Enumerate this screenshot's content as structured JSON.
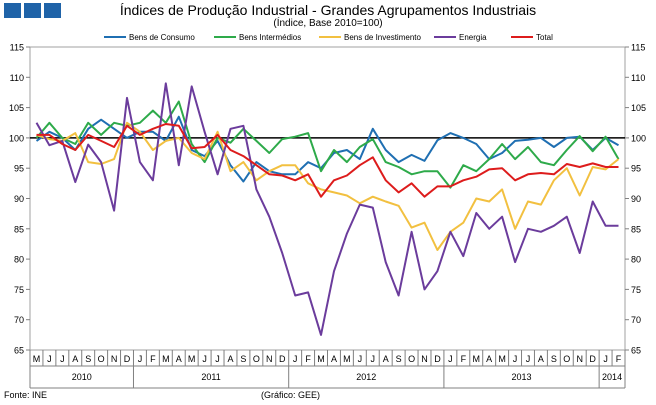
{
  "chart_data": {
    "type": "line",
    "title": "Índices de Produção Industrial - Grandes Agrupamentos Industriais",
    "subtitle": "(Índice, Base 2010=100)",
    "ylim": [
      65,
      115
    ],
    "yticks": [
      65,
      70,
      75,
      80,
      85,
      90,
      95,
      100,
      105,
      110,
      115
    ],
    "x": [
      "M",
      "J",
      "J",
      "A",
      "S",
      "O",
      "N",
      "D",
      "J",
      "F",
      "M",
      "A",
      "M",
      "J",
      "J",
      "A",
      "S",
      "O",
      "N",
      "D",
      "J",
      "F",
      "M",
      "A",
      "M",
      "J",
      "J",
      "A",
      "S",
      "O",
      "N",
      "D",
      "J",
      "F",
      "M",
      "A",
      "M",
      "J",
      "J",
      "A",
      "S",
      "O",
      "N",
      "D",
      "J",
      "F"
    ],
    "year_labels": [
      {
        "label": "2010",
        "start": 0,
        "end": 7
      },
      {
        "label": "2011",
        "start": 8,
        "end": 19
      },
      {
        "label": "2012",
        "start": 20,
        "end": 31
      },
      {
        "label": "2013",
        "start": 32,
        "end": 43
      },
      {
        "label": "2014",
        "start": 44,
        "end": 45
      }
    ],
    "reference_line": 100,
    "legend_position": "top",
    "series": [
      {
        "name": "Bens de Consumo",
        "color": "#1f6fb2",
        "values": [
          99.5,
          101,
          100,
          98,
          101.5,
          103,
          101.5,
          100,
          101,
          101,
          99.5,
          103.5,
          98,
          97,
          99.5,
          95.5,
          92.8,
          96,
          94.5,
          94,
          94,
          96,
          95,
          97.5,
          98,
          96.5,
          101.5,
          98,
          96,
          97.2,
          96.2,
          99.6,
          100.8,
          100,
          99,
          96.5,
          97.5,
          99.5,
          99.7,
          100,
          98.5,
          100,
          100.2,
          98,
          100,
          98.8
        ]
      },
      {
        "name": "Bens Intermédios",
        "color": "#2eaa4a",
        "values": [
          100,
          102.5,
          100,
          99,
          102.5,
          100.5,
          102.5,
          102,
          102.5,
          104.5,
          102.5,
          106,
          99,
          96,
          100,
          99.2,
          101.5,
          99.5,
          97.5,
          99.8,
          100.2,
          100.8,
          94.5,
          98,
          96,
          98.5,
          99.8,
          96,
          95.2,
          94,
          94.5,
          94.5,
          91.8,
          95.5,
          94.5,
          96.5,
          99,
          96.5,
          98.5,
          96,
          95.5,
          98,
          100.3,
          97.8,
          100.2,
          96.5
        ]
      },
      {
        "name": "Bens de Investimento",
        "color": "#f2c040",
        "values": [
          100.5,
          99.8,
          99.5,
          100.8,
          96,
          95.7,
          96.5,
          102.5,
          101,
          98,
          99.5,
          100,
          97.5,
          96.5,
          101,
          94.5,
          96,
          93,
          94.5,
          95.5,
          95.5,
          92.5,
          91.5,
          91,
          90.5,
          89.2,
          90.3,
          89.5,
          88.8,
          85.2,
          86,
          81.5,
          84.5,
          86,
          90,
          89.5,
          91.5,
          85,
          89.5,
          89,
          93,
          95,
          90.5,
          95.2,
          94.8,
          96.5
        ]
      },
      {
        "name": "Energia",
        "color": "#6b3c9c",
        "values": [
          102.5,
          98.8,
          99.5,
          92.7,
          98.9,
          96,
          88,
          106.6,
          96,
          93,
          109,
          95.5,
          108.5,
          101,
          94,
          101.5,
          102,
          91.5,
          87,
          81,
          74,
          74.5,
          67.5,
          78,
          84.2,
          89,
          88.5,
          79.5,
          74,
          84.5,
          75,
          78,
          84.5,
          80.5,
          87.6,
          85,
          87,
          79.5,
          85,
          84.5,
          85.5,
          87,
          81,
          89.5,
          85.5,
          85.5
        ]
      },
      {
        "name": "Total",
        "color": "#dd1c1c",
        "values": [
          100.5,
          100.5,
          99,
          98,
          100.5,
          99.5,
          98.5,
          102,
          100.5,
          101.5,
          102.3,
          102,
          98.3,
          98.5,
          100.5,
          98,
          97,
          95.5,
          94,
          93.8,
          93,
          94,
          90.3,
          93,
          93.8,
          95.5,
          96.8,
          93,
          91,
          92.5,
          90.3,
          92,
          92,
          93,
          93.6,
          94.8,
          95,
          93,
          94,
          94.2,
          94,
          95.7,
          95.2,
          95.8,
          95.2,
          95.2
        ]
      }
    ]
  },
  "footer": {
    "source": "Fonte: INE",
    "credit": "(Gráfico: GEE)"
  },
  "colors": {
    "logo": "#1f63a8",
    "reference_line": "#000000",
    "axis": "#808080"
  }
}
